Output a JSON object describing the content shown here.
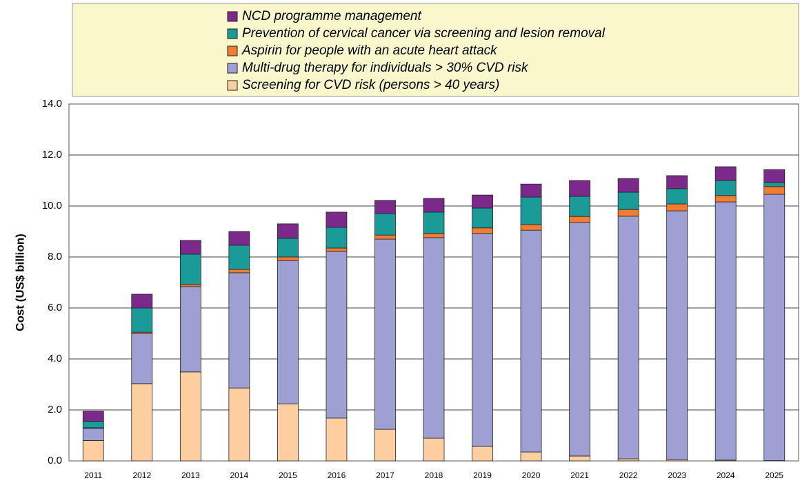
{
  "chart_data": {
    "type": "stacked_bar",
    "y_label": "Cost (US$ billion)",
    "categories": [
      "2011",
      "2012",
      "2013",
      "2014",
      "2015",
      "2016",
      "2017",
      "2018",
      "2019",
      "2020",
      "2021",
      "2022",
      "2023",
      "2024",
      "2025"
    ],
    "series": [
      {
        "name": "Screening for CVD risk (persons > 40 years)",
        "color": "#fdcea0",
        "values": [
          0.8,
          3.03,
          3.49,
          2.86,
          2.24,
          1.68,
          1.24,
          0.89,
          0.57,
          0.35,
          0.19,
          0.08,
          0.05,
          0.03,
          0.01
        ]
      },
      {
        "name": "Multi-drug therapy for individuals > 30% CVD risk",
        "color": "#9e9fd2",
        "values": [
          0.48,
          1.97,
          3.35,
          4.52,
          5.62,
          6.54,
          7.46,
          7.87,
          8.35,
          8.7,
          9.16,
          9.52,
          9.76,
          10.13,
          10.45
        ]
      },
      {
        "name": "Aspirin for people with an acute heart attack",
        "color": "#f47c30",
        "values": [
          0.02,
          0.05,
          0.08,
          0.13,
          0.14,
          0.13,
          0.16,
          0.16,
          0.22,
          0.22,
          0.24,
          0.26,
          0.27,
          0.25,
          0.3
        ]
      },
      {
        "name": "Prevention of cervical cancer via screening and lesion removal",
        "color": "#1a9b98",
        "values": [
          0.25,
          0.95,
          1.19,
          0.95,
          0.73,
          0.81,
          0.84,
          0.84,
          0.78,
          1.08,
          0.79,
          0.68,
          0.6,
          0.59,
          0.16
        ]
      },
      {
        "name": "NCD programme management",
        "color": "#7b2a8c",
        "values": [
          0.4,
          0.54,
          0.54,
          0.54,
          0.57,
          0.6,
          0.52,
          0.54,
          0.51,
          0.51,
          0.62,
          0.54,
          0.51,
          0.54,
          0.51
        ]
      }
    ],
    "ylim": [
      0,
      14
    ],
    "yticks": [
      {
        "value": 0,
        "label": "0.0"
      },
      {
        "value": 2,
        "label": "2.0"
      },
      {
        "value": 4,
        "label": "4.0"
      },
      {
        "value": 6,
        "label": "6.0"
      },
      {
        "value": 8,
        "label": "8.0"
      },
      {
        "value": 10,
        "label": "10.0"
      },
      {
        "value": 12,
        "label": "12.0"
      },
      {
        "value": 14,
        "label": "14.0"
      }
    ],
    "grid": true
  }
}
